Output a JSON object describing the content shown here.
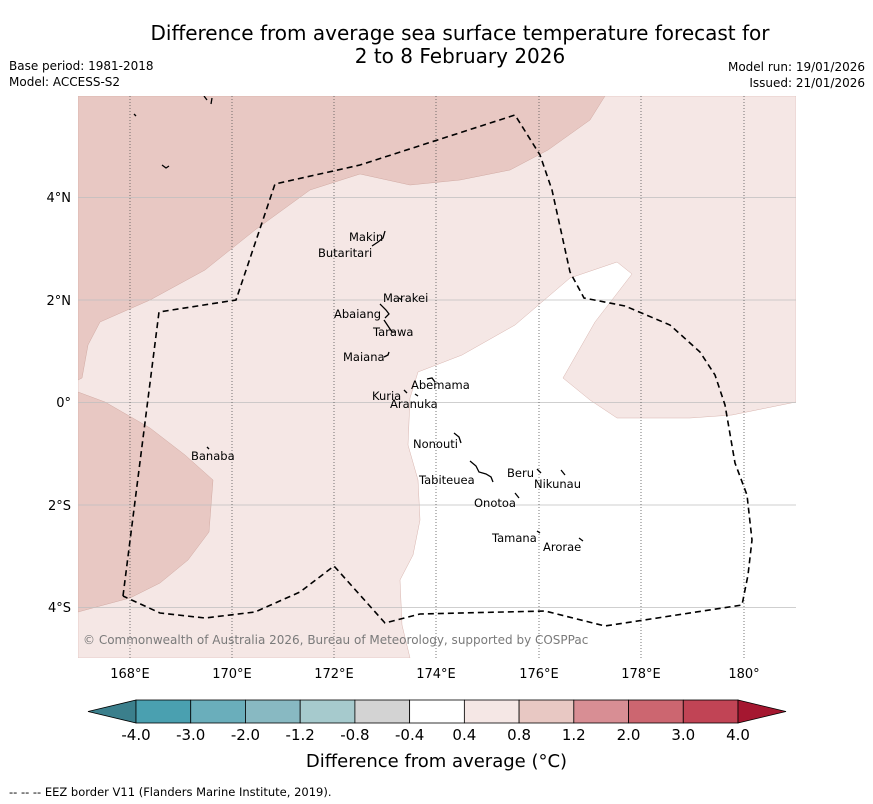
{
  "title_line1": "Difference from average sea surface temperature forecast for",
  "title_line2": "2 to 8 February 2026",
  "base_period": "Base period: 1981-2018",
  "model": "Model: ACCESS-S2",
  "model_run": "Model run: 19/01/2026",
  "issued": "Issued: 21/01/2026",
  "copyright": "© Commonwealth of Australia 2026, Bureau of Meteorology, supported by COSPPac",
  "footer": "--  --  -- EEZ border V11 (Flanders Marine Institute, 2019).",
  "map": {
    "lat_labels": [
      "4°N",
      "2°N",
      "0°",
      "2°S",
      "4°S"
    ],
    "lon_labels": [
      "168°E",
      "170°E",
      "172°E",
      "174°E",
      "176°E",
      "178°E",
      "180°"
    ],
    "islands": [
      "Makin",
      "Butaritari",
      "Marakei",
      "Abaiang",
      "Tarawa",
      "Maiana",
      "Abemama",
      "Kuria",
      "Aranuka",
      "Banaba",
      "Nonouti",
      "Tabiteuea",
      "Beru",
      "Nikunau",
      "Onotoa",
      "Tamana",
      "Arorae"
    ]
  },
  "colorbar": {
    "title": "Difference from average (°C)",
    "tick_labels": [
      "-4.0",
      "-3.0",
      "-2.0",
      "-1.2",
      "-0.8",
      "-0.4",
      "0.4",
      "0.8",
      "1.2",
      "2.0",
      "3.0",
      "4.0"
    ],
    "colors": [
      "#3b7f8c",
      "#4aa0b0",
      "#6aaebb",
      "#88b9c2",
      "#a6cacd",
      "#d3d3d3",
      "#ffffff",
      "#f5e7e5",
      "#e8c8c3",
      "#d88e94",
      "#cc6670",
      "#c14455",
      "#a51730"
    ]
  },
  "palette": {
    "warm_light": "#f5e7e5",
    "warm_mid": "#e8c8c3",
    "neutral": "#ffffff"
  }
}
